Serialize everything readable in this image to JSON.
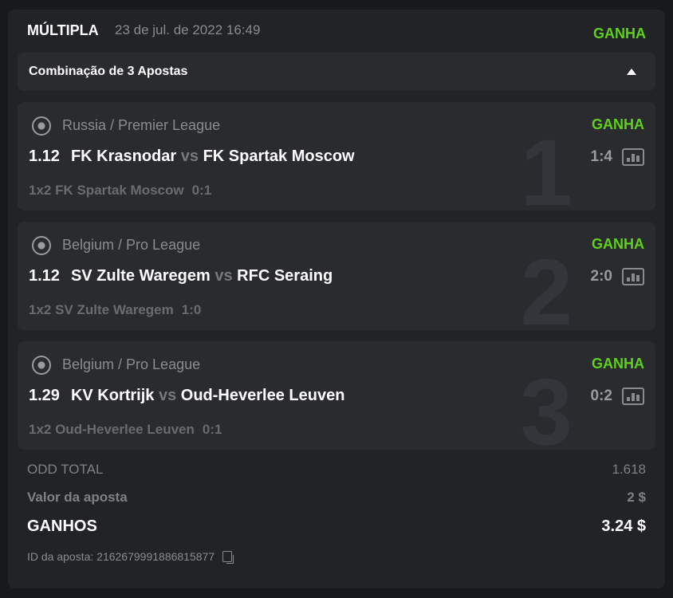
{
  "header": {
    "title": "MÚLTIPLA",
    "date": "23 de jul. de 2022 16:49",
    "status": "GANHA"
  },
  "combo": {
    "label": "Combinação de 3 Apostas",
    "icon": "triangle-up-icon"
  },
  "bets": [
    {
      "number": "1",
      "league": "Russia / Premier League",
      "status": "GANHA",
      "odd": "1.12",
      "home": "FK Krasnodar",
      "vs": "vs",
      "away": "FK Spartak Moscow",
      "score": "1:4",
      "market": "1x2 FK Spartak Moscow",
      "result": "0:1"
    },
    {
      "number": "2",
      "league": "Belgium / Pro League",
      "status": "GANHA",
      "odd": "1.12",
      "home": "SV Zulte Waregem",
      "vs": "vs",
      "away": "RFC Seraing",
      "score": "2:0",
      "market": "1x2 SV Zulte Waregem",
      "result": "1:0"
    },
    {
      "number": "3",
      "league": "Belgium / Pro League",
      "status": "GANHA",
      "odd": "1.29",
      "home": "KV Kortrijk",
      "vs": "vs",
      "away": "Oud-Heverlee Leuven",
      "score": "0:2",
      "market": "1x2 Oud-Heverlee Leuven",
      "result": "0:1"
    }
  ],
  "summary": {
    "odd_label": "ODD TOTAL",
    "odd_value": "1.618",
    "stake_label": "Valor da aposta",
    "stake_value": "2 $",
    "win_label": "GANHOS",
    "win_value": "3.24 $",
    "id_text": "ID da aposta: 2162679991886815877"
  },
  "colors": {
    "win": "#5fd01c",
    "background": "#18191c",
    "card": "#222327"
  }
}
